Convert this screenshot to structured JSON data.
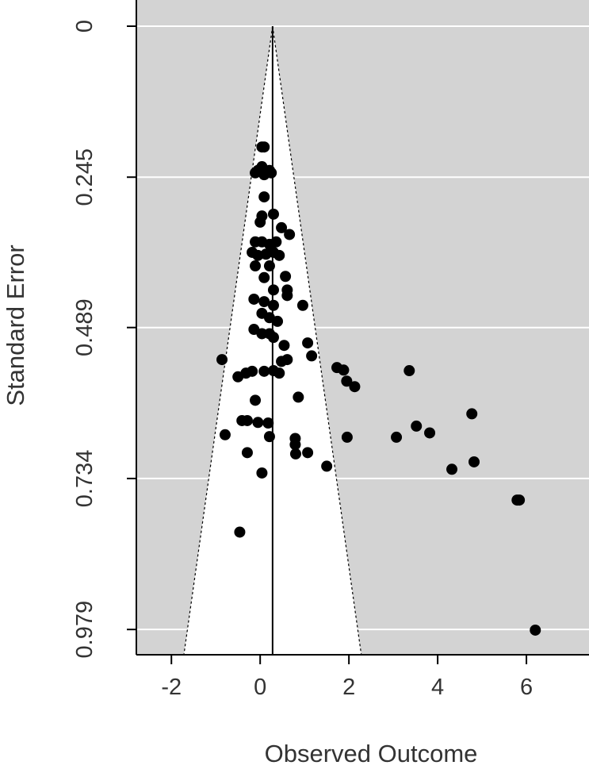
{
  "chart_data": {
    "type": "scatter",
    "x_label": "Observed Outcome",
    "y_label": "Standard Error",
    "xlim": [
      -2.79,
      7.41
    ],
    "ylim": [
      -0.0425,
      1.02
    ],
    "y_inverted": true,
    "xticks": [
      -2,
      0,
      2,
      4,
      6
    ],
    "yticks": [
      0,
      0.245,
      0.489,
      0.734,
      0.979
    ],
    "reference_x": 0.28,
    "grid": true,
    "color": "#000000",
    "x": [
      0.04,
      0.09,
      -0.05,
      0.04,
      0.21,
      -0.11,
      0.09,
      0.25,
      0.09,
      0.04,
      0.3,
      0.0,
      0.48,
      0.66,
      -0.11,
      0.04,
      0.21,
      0.36,
      -0.18,
      -0.05,
      0.13,
      0.3,
      0.43,
      -0.11,
      0.21,
      0.57,
      0.09,
      0.3,
      0.61,
      0.61,
      -0.14,
      0.09,
      0.3,
      0.96,
      0.04,
      0.21,
      0.39,
      -0.14,
      0.04,
      0.21,
      0.3,
      0.54,
      1.07,
      -0.86,
      0.48,
      0.61,
      1.16,
      1.73,
      1.88,
      1.95,
      2.13,
      3.36,
      -0.5,
      -0.32,
      -0.18,
      0.09,
      0.3,
      0.43,
      -0.11,
      0.86,
      -0.41,
      -0.29,
      -0.05,
      0.18,
      -0.79,
      0.21,
      0.79,
      0.79,
      1.96,
      3.07,
      3.52,
      3.82,
      4.77,
      -0.29,
      0.8,
      1.07,
      1.5,
      4.32,
      4.82,
      0.04,
      5.79,
      5.84,
      -0.46,
      6.2
    ],
    "values": [
      0.196,
      0.196,
      0.234,
      0.228,
      0.234,
      0.238,
      0.241,
      0.238,
      0.277,
      0.308,
      0.305,
      0.318,
      0.327,
      0.338,
      0.35,
      0.35,
      0.354,
      0.35,
      0.367,
      0.372,
      0.37,
      0.367,
      0.372,
      0.389,
      0.389,
      0.406,
      0.408,
      0.428,
      0.428,
      0.437,
      0.443,
      0.447,
      0.453,
      0.453,
      0.466,
      0.473,
      0.479,
      0.492,
      0.499,
      0.499,
      0.505,
      0.518,
      0.514,
      0.541,
      0.544,
      0.541,
      0.535,
      0.554,
      0.558,
      0.576,
      0.585,
      0.559,
      0.569,
      0.563,
      0.56,
      0.56,
      0.559,
      0.563,
      0.607,
      0.602,
      0.64,
      0.64,
      0.643,
      0.644,
      0.663,
      0.666,
      0.669,
      0.679,
      0.667,
      0.667,
      0.649,
      0.66,
      0.629,
      0.692,
      0.694,
      0.692,
      0.714,
      0.719,
      0.707,
      0.725,
      0.769,
      0.769,
      0.821,
      0.98
    ]
  }
}
